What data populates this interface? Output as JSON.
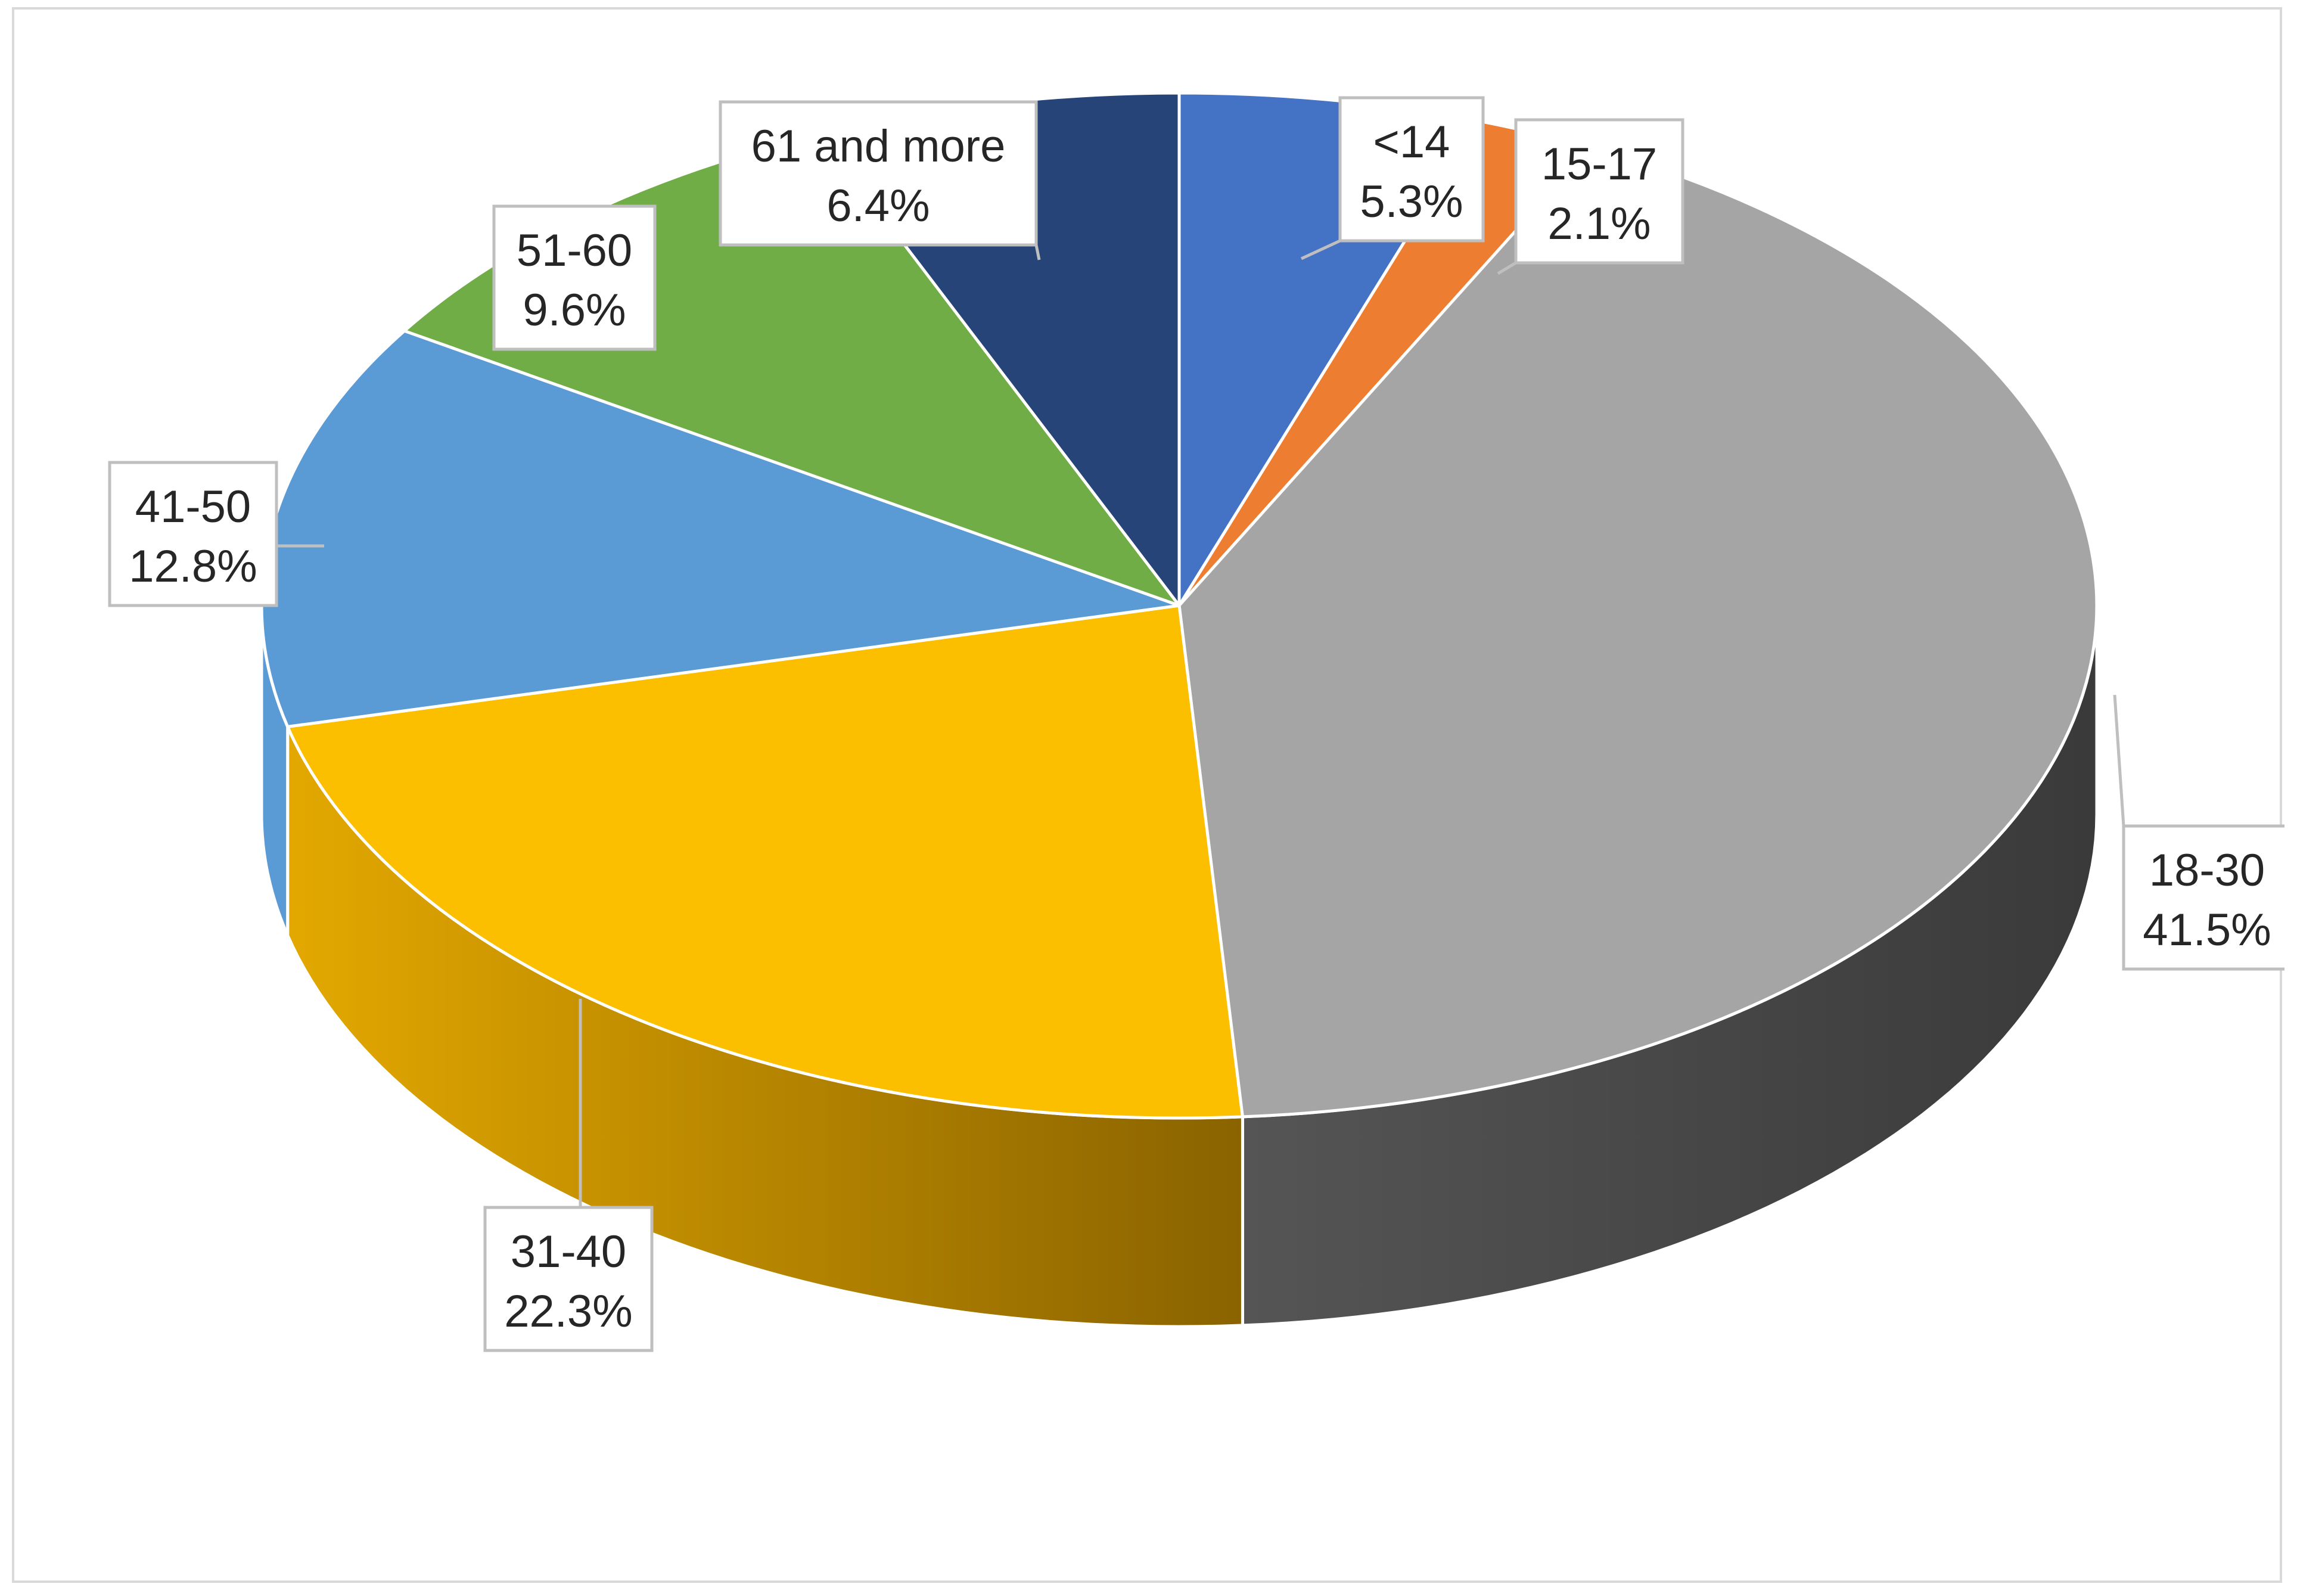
{
  "chart_data": {
    "type": "pie",
    "style": "3d-exploded-none",
    "title": "",
    "legend": "none",
    "slices": [
      {
        "label": "<14",
        "percent_label": "5.3%",
        "value": 5.3,
        "color": "#4472c4"
      },
      {
        "label": "15-17",
        "percent_label": "2.1%",
        "value": 2.1,
        "color": "#ed7d31"
      },
      {
        "label": "18-30",
        "percent_label": "41.5%",
        "value": 41.5,
        "color": "#a5a5a5"
      },
      {
        "label": "31-40",
        "percent_label": "22.3%",
        "value": 22.3,
        "color": "#fbbf00"
      },
      {
        "label": "41-50",
        "percent_label": "12.8%",
        "value": 12.8,
        "color": "#5b9bd5"
      },
      {
        "label": "51-60",
        "percent_label": "9.6%",
        "value": 9.6,
        "color": "#70ad47"
      },
      {
        "label": "61 and more",
        "percent_label": "6.4%",
        "value": 6.4,
        "color": "#264478"
      }
    ]
  }
}
